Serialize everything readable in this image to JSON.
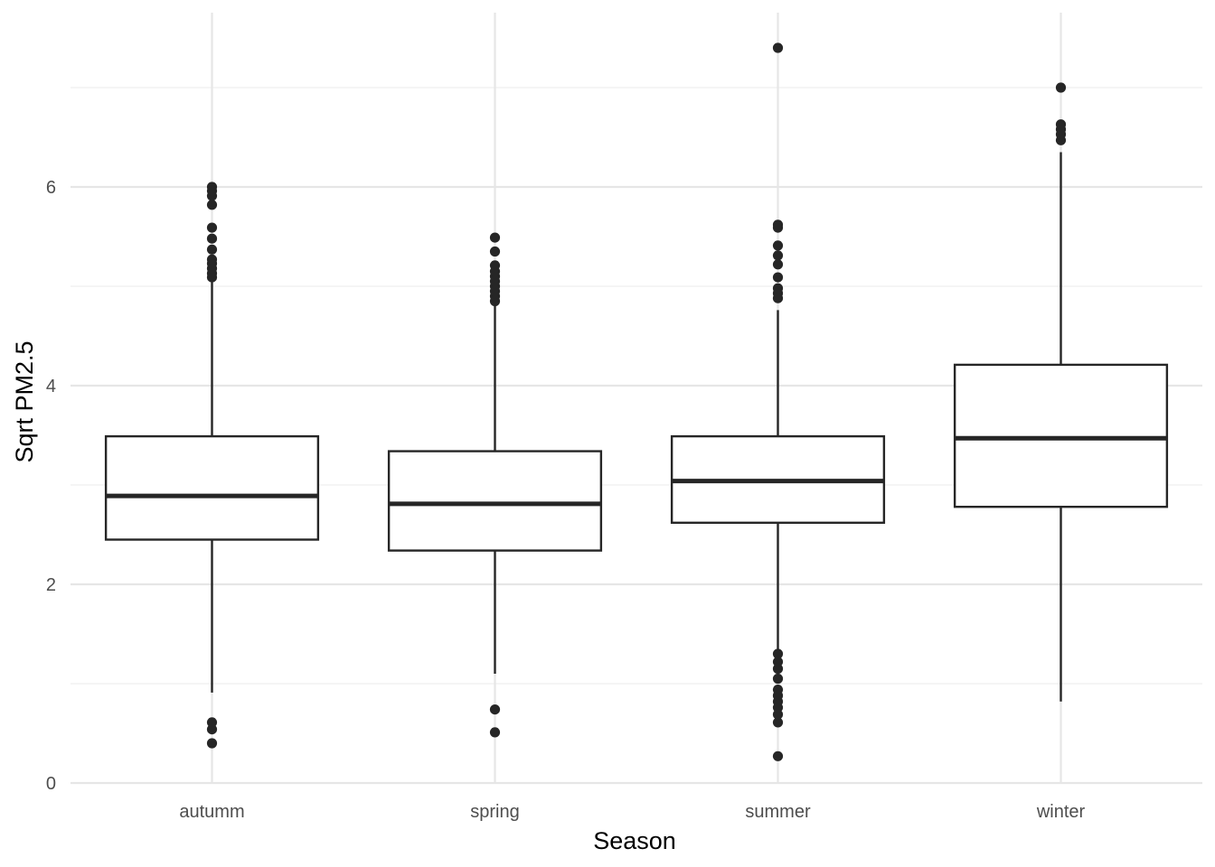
{
  "chart_data": {
    "type": "boxplot",
    "xlabel": "Season",
    "ylabel": "Sqrt PM2.5",
    "ylim": [
      0,
      7.4
    ],
    "yticks": [
      0,
      2,
      4,
      6
    ],
    "y_minor_ticks": [
      1,
      3,
      5,
      7
    ],
    "grid": true,
    "categories": [
      "autumm",
      "spring",
      "summer",
      "winter"
    ],
    "boxes": [
      {
        "category": "autumm",
        "whisker_low": 0.91,
        "q1": 2.45,
        "median": 2.89,
        "q3": 3.49,
        "whisker_high": 5.06,
        "outliers": [
          0.4,
          0.54,
          0.61,
          5.09,
          5.13,
          5.18,
          5.23,
          5.27,
          5.37,
          5.48,
          5.59,
          5.82,
          5.91,
          5.96,
          6.0
        ]
      },
      {
        "category": "spring",
        "whisker_low": 1.1,
        "q1": 2.34,
        "median": 2.81,
        "q3": 3.34,
        "whisker_high": 4.82,
        "outliers": [
          0.51,
          0.74,
          4.85,
          4.9,
          4.95,
          5.0,
          5.05,
          5.1,
          5.15,
          5.21,
          5.35,
          5.49
        ]
      },
      {
        "category": "summer",
        "whisker_low": 1.31,
        "q1": 2.62,
        "median": 3.04,
        "q3": 3.49,
        "whisker_high": 4.76,
        "outliers": [
          0.27,
          0.61,
          0.69,
          0.76,
          0.82,
          0.88,
          0.94,
          1.05,
          1.15,
          1.22,
          1.3,
          4.88,
          4.93,
          4.98,
          5.09,
          5.22,
          5.31,
          5.41,
          5.59,
          5.62,
          7.4
        ]
      },
      {
        "category": "winter",
        "whisker_low": 0.82,
        "q1": 2.78,
        "median": 3.47,
        "q3": 4.21,
        "whisker_high": 6.35,
        "outliers": [
          6.47,
          6.53,
          6.58,
          6.63,
          7.0
        ]
      }
    ]
  }
}
